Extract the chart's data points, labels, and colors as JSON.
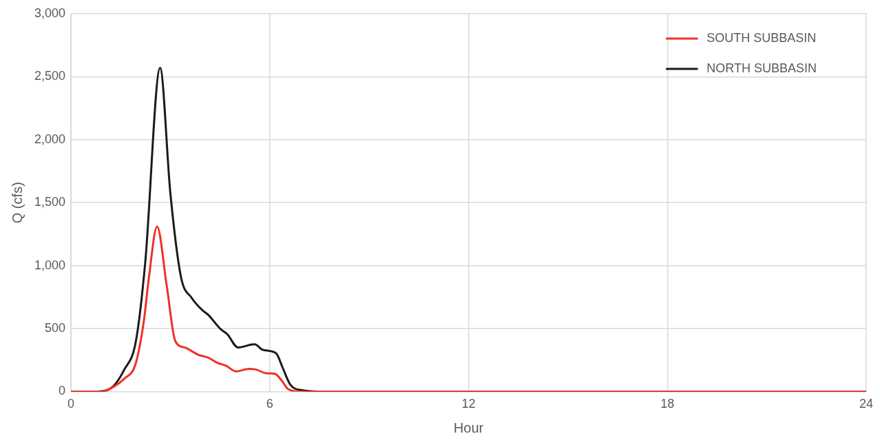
{
  "chart_data": {
    "type": "line",
    "xlabel": "Hour",
    "ylabel": "Q (cfs)",
    "xlim": [
      0,
      24
    ],
    "xticks": [
      0,
      6,
      12,
      18,
      24
    ],
    "ylim": [
      0,
      3000
    ],
    "yticks": [
      {
        "value": 0,
        "label": "0"
      },
      {
        "value": 500,
        "label": "500"
      },
      {
        "value": 1000,
        "label": "1,000"
      },
      {
        "value": 1500,
        "label": "1,500"
      },
      {
        "value": 2000,
        "label": "2,000"
      },
      {
        "value": 2500,
        "label": "2,500"
      },
      {
        "value": 3000,
        "label": "3,000"
      }
    ],
    "grid": true,
    "legend": "top right",
    "marker": "none",
    "line_style": "solid",
    "series": [
      {
        "name": "SOUTH SUBBASIN",
        "color": "#ee3124",
        "x": [
          0,
          0.9,
          1.3,
          1.6,
          1.95,
          2.2,
          2.35,
          2.6,
          2.89,
          3.15,
          3.43,
          3.86,
          4.14,
          4.4,
          4.68,
          4.98,
          5.37,
          5.58,
          5.9,
          6.16,
          6.38,
          6.55,
          6.9,
          7.5,
          24
        ],
        "values": [
          0,
          0,
          40,
          100,
          220,
          560,
          900,
          1310,
          840,
          400,
          350,
          290,
          270,
          230,
          205,
          160,
          180,
          175,
          145,
          140,
          80,
          20,
          0,
          0,
          0
        ]
      },
      {
        "name": "NORTH SUBBASIN",
        "color": "#1a1a1a",
        "x": [
          0,
          0.8,
          1.27,
          1.6,
          1.96,
          2.24,
          2.69,
          3.0,
          3.32,
          3.64,
          3.97,
          4.14,
          4.5,
          4.72,
          5.04,
          5.54,
          5.8,
          6.19,
          6.38,
          6.62,
          6.98,
          7.5,
          24
        ],
        "values": [
          0,
          0,
          40,
          170,
          400,
          1020,
          2570,
          1575,
          910,
          745,
          645,
          610,
          500,
          455,
          350,
          375,
          330,
          305,
          195,
          55,
          10,
          0,
          0
        ]
      }
    ]
  }
}
